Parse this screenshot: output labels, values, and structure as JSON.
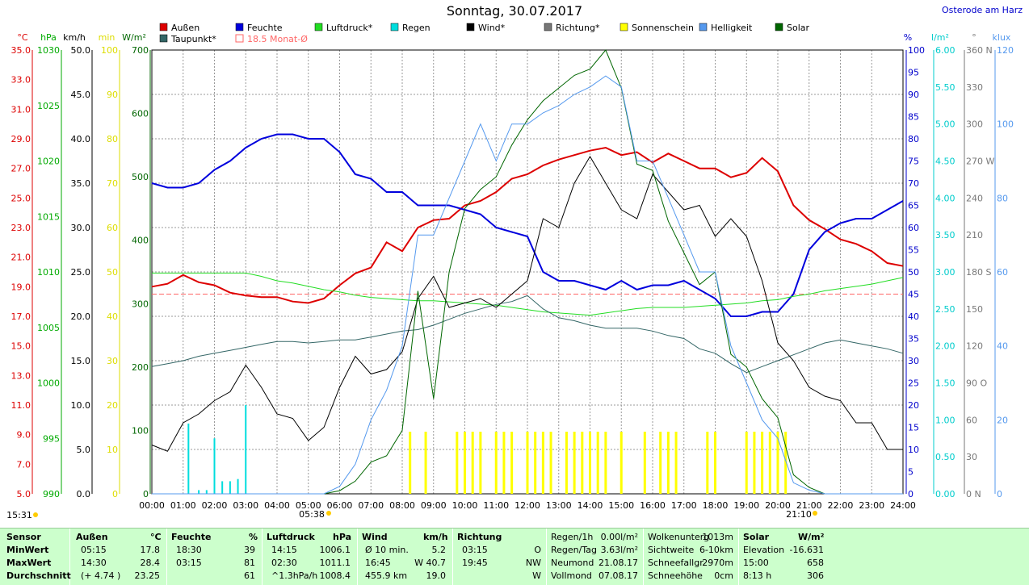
{
  "title": "Sonntag, 30.07.2017",
  "location": "Osterode am Harz",
  "legend": [
    {
      "label": "Außen",
      "color": "#dd0000"
    },
    {
      "label": "Feuchte",
      "color": "#0000dd"
    },
    {
      "label": "Luftdruck*",
      "color": "#22dd22"
    },
    {
      "label": "Regen",
      "color": "#00dddd"
    },
    {
      "label": "Wind*",
      "color": "#000000"
    },
    {
      "label": "Richtung*",
      "color": "#777777"
    },
    {
      "label": "Sonnenschein",
      "color": "#ffff00"
    },
    {
      "label": "Helligkeit",
      "color": "#5599ee"
    },
    {
      "label": "Solar",
      "color": "#006600"
    },
    {
      "label": "Taupunkt*",
      "color": "#336666"
    },
    {
      "label": "18.5 Monat-Ø",
      "color": "#ff6666"
    }
  ],
  "axes": {
    "temp": {
      "unit": "°C",
      "ticks": [
        "35.0",
        "33.0",
        "31.0",
        "29.0",
        "27.0",
        "25.0",
        "23.0",
        "21.0",
        "19.0",
        "17.0",
        "15.0",
        "13.0",
        "11.0",
        "9.0",
        "7.0",
        "5.0"
      ],
      "color": "#dd0000"
    },
    "press": {
      "unit": "hPa",
      "ticks": [
        "1030",
        "1025",
        "1020",
        "1015",
        "1010",
        "1005",
        "1000",
        "995",
        "990"
      ],
      "color": "#00aa00"
    },
    "wind": {
      "unit": "km/h",
      "ticks": [
        "50.0",
        "45.0",
        "40.0",
        "35.0",
        "30.0",
        "25.0",
        "20.0",
        "15.0",
        "10.0",
        "5.0",
        "0.0"
      ],
      "color": "#000000"
    },
    "min": {
      "unit": "min",
      "ticks": [
        "100",
        "90",
        "80",
        "70",
        "60",
        "50",
        "40",
        "30",
        "20",
        "10",
        "0"
      ],
      "color": "#dddd00"
    },
    "solar": {
      "unit": "W/m²",
      "ticks": [
        "700",
        "600",
        "500",
        "400",
        "300",
        "200",
        "100",
        "0"
      ],
      "color": "#006600"
    },
    "hum": {
      "unit": "%",
      "ticks": [
        "100",
        "95",
        "90",
        "85",
        "80",
        "75",
        "70",
        "65",
        "60",
        "55",
        "50",
        "45",
        "40",
        "35",
        "30",
        "25",
        "20",
        "15",
        "10",
        "5",
        "0"
      ],
      "color": "#0000cc"
    },
    "rain": {
      "unit": "l/m²",
      "ticks": [
        "6.00",
        "5.50",
        "5.00",
        "4.50",
        "4.00",
        "3.50",
        "3.00",
        "2.50",
        "2.00",
        "1.50",
        "1.00",
        "0.50",
        "0.00"
      ],
      "color": "#00cccc"
    },
    "dir": {
      "unit": "°",
      "ticks": [
        "360 N",
        "330",
        "300",
        "270 W",
        "240",
        "210",
        "180 S",
        "150",
        "120",
        "90 O",
        "60",
        "30",
        "0 N"
      ],
      "color": "#777777"
    },
    "lux": {
      "unit": "klux",
      "ticks": [
        "120",
        "100",
        "80",
        "60",
        "40",
        "20",
        "0"
      ],
      "color": "#5599ee"
    }
  },
  "x_ticks": [
    "00:00",
    "01:00",
    "02:00",
    "03:00",
    "04:00",
    "05:00",
    "06:00",
    "07:00",
    "08:00",
    "09:00",
    "10:00",
    "11:00",
    "12:00",
    "13:00",
    "14:00",
    "15:00",
    "16:00",
    "17:00",
    "18:00",
    "19:00",
    "20:00",
    "21:00",
    "22:00",
    "23:00",
    "24:00"
  ],
  "markers": {
    "left": "15:31",
    "sunrise": "05:38",
    "sunset": "21:10"
  },
  "chart_data": {
    "type": "line",
    "x_hours": [
      0,
      0.5,
      1,
      1.5,
      2,
      2.5,
      3,
      3.5,
      4,
      4.5,
      5,
      5.5,
      6,
      6.5,
      7,
      7.5,
      8,
      8.5,
      9,
      9.5,
      10,
      10.5,
      11,
      11.5,
      12,
      12.5,
      13,
      13.5,
      14,
      14.5,
      15,
      15.5,
      16,
      16.5,
      17,
      17.5,
      18,
      18.5,
      19,
      19.5,
      20,
      20.5,
      21,
      21.5,
      22,
      22.5,
      23,
      23.5,
      24
    ],
    "series": [
      {
        "name": "Außen",
        "unit": "°C",
        "values": [
          19.0,
          19.2,
          19.8,
          19.3,
          19.1,
          18.6,
          18.4,
          18.3,
          18.3,
          18.0,
          17.9,
          18.2,
          19.1,
          19.9,
          20.3,
          22.0,
          21.4,
          23.0,
          23.5,
          23.6,
          24.5,
          24.8,
          25.4,
          26.3,
          26.6,
          27.2,
          27.6,
          27.9,
          28.2,
          28.4,
          27.9,
          28.1,
          27.4,
          28.0,
          27.5,
          27.0,
          27.0,
          26.4,
          26.7,
          27.7,
          26.8,
          24.5,
          23.5,
          22.9,
          22.2,
          21.9,
          21.4,
          20.6,
          20.4
        ]
      },
      {
        "name": "Feuchte",
        "unit": "%",
        "values": [
          70,
          69,
          69,
          70,
          73,
          75,
          78,
          80,
          81,
          81,
          80,
          80,
          77,
          72,
          71,
          68,
          68,
          65,
          65,
          65,
          64,
          63,
          60,
          59,
          58,
          50,
          48,
          48,
          47,
          46,
          48,
          46,
          47,
          47,
          48,
          46,
          44,
          40,
          40,
          41,
          41,
          45,
          55,
          59,
          61,
          62,
          62,
          64,
          66
        ]
      },
      {
        "name": "Luftdruck",
        "unit": "hPa",
        "values": [
          1009.9,
          1009.9,
          1009.9,
          1009.9,
          1009.9,
          1009.9,
          1009.9,
          1009.6,
          1009.2,
          1009.0,
          1008.7,
          1008.4,
          1008.2,
          1007.9,
          1007.7,
          1007.6,
          1007.5,
          1007.4,
          1007.4,
          1007.3,
          1007.2,
          1007.1,
          1007.0,
          1006.8,
          1006.6,
          1006.4,
          1006.3,
          1006.2,
          1006.1,
          1006.3,
          1006.5,
          1006.7,
          1006.8,
          1006.8,
          1006.8,
          1006.9,
          1007.0,
          1007.1,
          1007.2,
          1007.4,
          1007.5,
          1007.8,
          1008.0,
          1008.3,
          1008.5,
          1008.7,
          1008.9,
          1009.2,
          1009.5
        ]
      },
      {
        "name": "Taupunkt",
        "unit": "°C",
        "values": [
          13.6,
          13.8,
          14.0,
          14.3,
          14.5,
          14.7,
          14.9,
          15.1,
          15.3,
          15.3,
          15.2,
          15.3,
          15.4,
          15.4,
          15.6,
          15.8,
          16.0,
          16.1,
          16.4,
          16.8,
          17.2,
          17.5,
          17.8,
          18.0,
          18.4,
          17.5,
          16.9,
          16.7,
          16.4,
          16.2,
          16.2,
          16.2,
          16.0,
          15.7,
          15.5,
          14.8,
          14.5,
          13.8,
          13.2,
          13.6,
          14.0,
          14.4,
          14.8,
          15.2,
          15.4,
          15.2,
          15.0,
          14.8,
          14.5
        ]
      },
      {
        "name": "Wind",
        "unit": "km/h",
        "values": [
          5.5,
          4.8,
          8.0,
          9.0,
          10.5,
          11.5,
          14.5,
          12.0,
          9.0,
          8.5,
          6.0,
          7.5,
          12.0,
          15.5,
          13.5,
          14.0,
          16.0,
          22.0,
          24.5,
          21.0,
          21.5,
          22.0,
          21.0,
          22.5,
          24.0,
          31.0,
          30.0,
          35.0,
          38.0,
          35.0,
          32.0,
          31.0,
          36.0,
          34.0,
          32.0,
          32.5,
          29.0,
          31.0,
          29.0,
          24.0,
          17.0,
          15.0,
          12.0,
          11.0,
          10.5,
          8.0,
          8.0,
          5.0,
          5.0
        ]
      },
      {
        "name": "Solar",
        "unit": "W/m²",
        "values": [
          0,
          0,
          0,
          0,
          0,
          0,
          0,
          0,
          0,
          0,
          0,
          0,
          5,
          20,
          50,
          60,
          100,
          320,
          150,
          350,
          450,
          480,
          500,
          550,
          590,
          620,
          640,
          660,
          670,
          700,
          640,
          520,
          510,
          430,
          380,
          330,
          350,
          220,
          200,
          150,
          120,
          30,
          10,
          0,
          0,
          0,
          0,
          0,
          0
        ]
      },
      {
        "name": "Helligkeit",
        "unit": "klux",
        "values": [
          0,
          0,
          0,
          0,
          0,
          0,
          0,
          0,
          0,
          0,
          0,
          0,
          2,
          8,
          20,
          28,
          40,
          70,
          70,
          80,
          90,
          100,
          90,
          100,
          100,
          103,
          105,
          108,
          110,
          113,
          110,
          90,
          90,
          80,
          70,
          60,
          60,
          40,
          30,
          20,
          15,
          3,
          1,
          0,
          0,
          0,
          0,
          0,
          0
        ]
      },
      {
        "name": "Regen",
        "unit": "l/m²",
        "values": [
          0,
          0,
          0.95,
          0,
          0.75,
          0.2,
          1.2,
          0,
          0,
          0,
          0,
          0,
          0,
          0,
          0,
          0,
          0,
          0,
          0,
          0,
          0,
          0,
          0,
          0,
          0,
          0,
          0,
          0,
          0,
          0,
          0,
          0,
          0,
          0,
          0,
          0,
          0,
          0,
          0,
          0,
          0,
          0,
          0,
          0,
          0,
          0,
          0,
          0,
          0
        ]
      }
    ],
    "rain_bars": [
      {
        "x": 1.17,
        "v": 0.95
      },
      {
        "x": 1.5,
        "v": 0.05
      },
      {
        "x": 1.75,
        "v": 0.05
      },
      {
        "x": 2.0,
        "v": 0.75
      },
      {
        "x": 2.25,
        "v": 0.17
      },
      {
        "x": 2.5,
        "v": 0.17
      },
      {
        "x": 2.75,
        "v": 0.2
      },
      {
        "x": 3.0,
        "v": 1.2
      }
    ],
    "sunshine_min": [
      {
        "x": 8.25,
        "v": 14
      },
      {
        "x": 8.75,
        "v": 14
      },
      {
        "x": 9.75,
        "v": 14
      },
      {
        "x": 10.0,
        "v": 14
      },
      {
        "x": 10.25,
        "v": 14
      },
      {
        "x": 10.5,
        "v": 14
      },
      {
        "x": 11.0,
        "v": 14
      },
      {
        "x": 11.25,
        "v": 14
      },
      {
        "x": 11.5,
        "v": 14
      },
      {
        "x": 12.0,
        "v": 14
      },
      {
        "x": 12.25,
        "v": 14
      },
      {
        "x": 12.5,
        "v": 14
      },
      {
        "x": 12.75,
        "v": 14
      },
      {
        "x": 13.25,
        "v": 14
      },
      {
        "x": 13.5,
        "v": 14
      },
      {
        "x": 13.75,
        "v": 14
      },
      {
        "x": 14.0,
        "v": 14
      },
      {
        "x": 14.25,
        "v": 14
      },
      {
        "x": 14.5,
        "v": 14
      },
      {
        "x": 15.0,
        "v": 14
      },
      {
        "x": 15.75,
        "v": 14
      },
      {
        "x": 16.25,
        "v": 14
      },
      {
        "x": 16.5,
        "v": 14
      },
      {
        "x": 16.75,
        "v": 14
      },
      {
        "x": 17.75,
        "v": 14
      },
      {
        "x": 18.0,
        "v": 14
      },
      {
        "x": 19.0,
        "v": 14
      },
      {
        "x": 19.25,
        "v": 14
      },
      {
        "x": 19.5,
        "v": 14
      },
      {
        "x": 19.75,
        "v": 14
      },
      {
        "x": 20.0,
        "v": 14
      },
      {
        "x": 20.25,
        "v": 14
      }
    ],
    "monthly_avg_temp": 18.5
  },
  "table": {
    "headers": {
      "sensor": "Sensor",
      "aussen": "Außen",
      "aussen_unit": "°C",
      "feuchte": "Feuchte",
      "feuchte_unit": "%",
      "luft": "Luftdruck",
      "luft_unit": "hPa",
      "wind": "Wind",
      "wind_unit": "km/h",
      "richtung": "Richtung",
      "solar": "Solar",
      "solar_unit": "W/m²"
    },
    "rows": [
      {
        "label": "MinWert",
        "a_t": "05:15",
        "a_v": "17.8",
        "f_t": "18:30",
        "f_v": "39",
        "l_t": "14:15",
        "l_v": "1006.1",
        "w_t": "Ø 10 min.",
        "w_v": "5.2",
        "r_t": "03:15",
        "r_v": "O",
        "s_l": "Elevation",
        "s_v": "-16.631"
      },
      {
        "label": "MaxWert",
        "a_t": "14:30",
        "a_v": "28.4",
        "f_t": "03:15",
        "f_v": "81",
        "l_t": "02:30",
        "l_v": "1011.1",
        "w_t": "16:45",
        "w_v": "W 40.7",
        "r_t": "19:45",
        "r_v": "NW",
        "s_l": "15:00",
        "s_v": "658"
      },
      {
        "label": "Durchschnitt",
        "a_t": "(+ 4.74 )",
        "a_v": "23.25",
        "f_t": "",
        "f_v": "61",
        "l_t": "^1.3hPa/h",
        "l_v": "1008.4",
        "w_t": "455.9 km",
        "w_v": "19.0",
        "r_t": "",
        "r_v": "W",
        "s_l": "8:13 h",
        "s_v": "306"
      }
    ],
    "extra": [
      {
        "a": "Regen/1h",
        "b": "0.00l/m²",
        "c": "Wolkenunterg",
        "d": "1013m"
      },
      {
        "a": "Regen/Tag",
        "b": "3.63l/m²",
        "c": "Sichtweite",
        "d": "6-10km"
      },
      {
        "a": "Neumond",
        "b": "21.08.17",
        "c": "Schneefallgr",
        "d": "2970m"
      },
      {
        "a": "Vollmond",
        "b": "07.08.17",
        "c": "Schneehöhe",
        "d": "0cm"
      }
    ]
  }
}
